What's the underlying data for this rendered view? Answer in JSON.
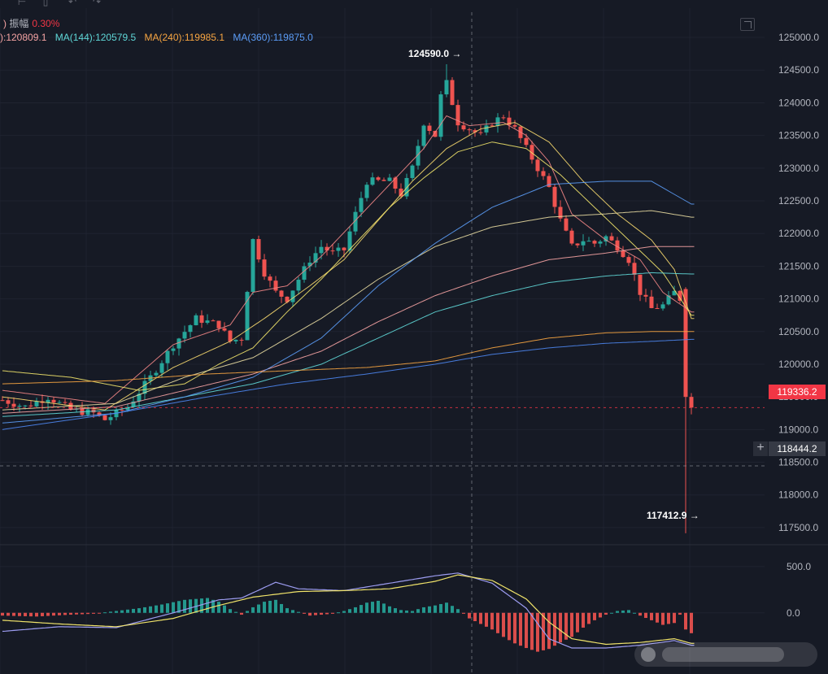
{
  "header": {
    "amplitude_label": "振幅",
    "amplitude_value": "0.30%",
    "paren_fragment": ")"
  },
  "ma_legend": [
    {
      "label": "):120809.1",
      "color": "#f5a3a3"
    },
    {
      "label": "MA(144):120579.5",
      "color": "#5fd7d7"
    },
    {
      "label": "MA(240):119985.1",
      "color": "#f7a541"
    },
    {
      "label": "MA(360):119875.0",
      "color": "#5b9cf6"
    }
  ],
  "icons": [
    "grid-icon",
    "calendar-icon",
    "undo-icon",
    "redo-icon",
    "expand-icon",
    "plus-icon"
  ],
  "chart_data": {
    "type": "candlestick",
    "y_axis": {
      "ticks": [
        "125000.0",
        "124500.0",
        "124000.0",
        "123500.0",
        "123000.0",
        "122500.0",
        "122000.0",
        "121500.0",
        "121000.0",
        "120500.0",
        "120000.0",
        "119500.0",
        "119000.0",
        "118500.0",
        "118000.0",
        "117500.0"
      ],
      "range": [
        117300,
        125150
      ]
    },
    "current_price": "119336.2",
    "cursor_price": "118444.2",
    "high_label": "124590.0",
    "low_label": "117412.9",
    "high_value": 124590.0,
    "low_value": 117412.9,
    "anchors": [
      [
        0,
        119450
      ],
      [
        4,
        119350
      ],
      [
        8,
        119500
      ],
      [
        12,
        119300
      ],
      [
        16,
        119250
      ],
      [
        18,
        119150
      ],
      [
        22,
        119350
      ],
      [
        26,
        119800
      ],
      [
        30,
        120300
      ],
      [
        34,
        120700
      ],
      [
        38,
        120600
      ],
      [
        40,
        120350
      ],
      [
        42,
        120400
      ],
      [
        44,
        121900
      ],
      [
        46,
        121400
      ],
      [
        48,
        121100
      ],
      [
        50,
        121000
      ],
      [
        52,
        121300
      ],
      [
        54,
        121600
      ],
      [
        56,
        121800
      ],
      [
        58,
        121700
      ],
      [
        60,
        121750
      ],
      [
        62,
        122300
      ],
      [
        64,
        122800
      ],
      [
        66,
        122800
      ],
      [
        68,
        122800
      ],
      [
        70,
        122600
      ],
      [
        72,
        123000
      ],
      [
        74,
        123700
      ],
      [
        76,
        123500
      ],
      [
        77,
        124100
      ],
      [
        78,
        124300
      ],
      [
        79,
        124000
      ],
      [
        80,
        123700
      ],
      [
        82,
        123600
      ],
      [
        84,
        123500
      ],
      [
        86,
        123700
      ],
      [
        88,
        123800
      ],
      [
        90,
        123600
      ],
      [
        92,
        123300
      ],
      [
        94,
        123000
      ],
      [
        96,
        122700
      ],
      [
        98,
        122200
      ],
      [
        100,
        121800
      ],
      [
        102,
        121900
      ],
      [
        104,
        121850
      ],
      [
        106,
        121950
      ],
      [
        108,
        121800
      ],
      [
        110,
        121600
      ],
      [
        112,
        121100
      ],
      [
        114,
        120850
      ],
      [
        116,
        120900
      ],
      [
        118,
        121100
      ],
      [
        119,
        121000
      ],
      [
        120,
        119500
      ],
      [
        121,
        119336
      ]
    ],
    "ma_curves": [
      {
        "name": "ma-red",
        "color": "#f08585",
        "points": [
          [
            0,
            119600
          ],
          [
            18,
            119400
          ],
          [
            30,
            120300
          ],
          [
            40,
            120600
          ],
          [
            44,
            121100
          ],
          [
            50,
            121200
          ],
          [
            56,
            121650
          ],
          [
            62,
            122200
          ],
          [
            68,
            122750
          ],
          [
            74,
            123300
          ],
          [
            78,
            123800
          ],
          [
            82,
            123650
          ],
          [
            88,
            123700
          ],
          [
            92,
            123500
          ],
          [
            96,
            123100
          ],
          [
            100,
            122300
          ],
          [
            106,
            121900
          ],
          [
            112,
            121600
          ],
          [
            116,
            121100
          ],
          [
            121,
            120800
          ]
        ]
      },
      {
        "name": "ma-yellow-fast",
        "color": "#f5d76e",
        "points": [
          [
            0,
            119500
          ],
          [
            18,
            119300
          ],
          [
            30,
            119950
          ],
          [
            40,
            120350
          ],
          [
            46,
            120700
          ],
          [
            54,
            121200
          ],
          [
            60,
            121600
          ],
          [
            66,
            122200
          ],
          [
            72,
            122800
          ],
          [
            78,
            123300
          ],
          [
            84,
            123600
          ],
          [
            90,
            123700
          ],
          [
            96,
            123400
          ],
          [
            102,
            122800
          ],
          [
            108,
            122300
          ],
          [
            114,
            121900
          ],
          [
            118,
            121450
          ],
          [
            121,
            120700
          ]
        ]
      },
      {
        "name": "ma-yellow-slow",
        "color": "#f0e36a",
        "points": [
          [
            0,
            119900
          ],
          [
            12,
            119800
          ],
          [
            24,
            119600
          ],
          [
            32,
            119700
          ],
          [
            38,
            120000
          ],
          [
            44,
            120250
          ],
          [
            50,
            120800
          ],
          [
            56,
            121300
          ],
          [
            62,
            121850
          ],
          [
            68,
            122400
          ],
          [
            74,
            122850
          ],
          [
            80,
            123250
          ],
          [
            86,
            123400
          ],
          [
            92,
            123300
          ],
          [
            98,
            122900
          ],
          [
            104,
            122400
          ],
          [
            110,
            121900
          ],
          [
            116,
            121400
          ],
          [
            121,
            120750
          ]
        ]
      },
      {
        "name": "ma-olive",
        "color": "#e6d9a0",
        "points": [
          [
            0,
            119300
          ],
          [
            20,
            119400
          ],
          [
            32,
            119800
          ],
          [
            44,
            120100
          ],
          [
            56,
            120700
          ],
          [
            66,
            121300
          ],
          [
            76,
            121800
          ],
          [
            86,
            122100
          ],
          [
            96,
            122250
          ],
          [
            106,
            122300
          ],
          [
            114,
            122350
          ],
          [
            121,
            122250
          ]
        ]
      },
      {
        "name": "ma-pink",
        "color": "#f5a3a3",
        "points": [
          [
            0,
            119250
          ],
          [
            20,
            119350
          ],
          [
            32,
            119600
          ],
          [
            44,
            119850
          ],
          [
            56,
            120200
          ],
          [
            66,
            120650
          ],
          [
            76,
            121050
          ],
          [
            86,
            121350
          ],
          [
            96,
            121600
          ],
          [
            106,
            121700
          ],
          [
            114,
            121800
          ],
          [
            121,
            121800
          ]
        ]
      },
      {
        "name": "ma-cyan",
        "color": "#5fd7d7",
        "points": [
          [
            0,
            119200
          ],
          [
            20,
            119300
          ],
          [
            32,
            119500
          ],
          [
            44,
            119700
          ],
          [
            56,
            120000
          ],
          [
            66,
            120400
          ],
          [
            76,
            120800
          ],
          [
            86,
            121050
          ],
          [
            96,
            121250
          ],
          [
            106,
            121350
          ],
          [
            114,
            121400
          ],
          [
            121,
            121380
          ]
        ]
      },
      {
        "name": "ma-light-blue",
        "color": "#5b9cf6",
        "points": [
          [
            0,
            119100
          ],
          [
            20,
            119250
          ],
          [
            32,
            119500
          ],
          [
            44,
            119800
          ],
          [
            56,
            120400
          ],
          [
            66,
            121200
          ],
          [
            76,
            121850
          ],
          [
            86,
            122400
          ],
          [
            96,
            122750
          ],
          [
            106,
            122800
          ],
          [
            114,
            122800
          ],
          [
            121,
            122450
          ]
        ]
      },
      {
        "name": "ma-orange",
        "color": "#f7a541",
        "points": [
          [
            0,
            119700
          ],
          [
            20,
            119750
          ],
          [
            36,
            119850
          ],
          [
            50,
            119900
          ],
          [
            64,
            119950
          ],
          [
            76,
            120050
          ],
          [
            86,
            120250
          ],
          [
            96,
            120400
          ],
          [
            106,
            120480
          ],
          [
            114,
            120500
          ],
          [
            121,
            120500
          ]
        ]
      },
      {
        "name": "ma-blue",
        "color": "#4d86f0",
        "points": [
          [
            0,
            119000
          ],
          [
            20,
            119250
          ],
          [
            36,
            119500
          ],
          [
            50,
            119700
          ],
          [
            64,
            119850
          ],
          [
            76,
            120000
          ],
          [
            86,
            120150
          ],
          [
            96,
            120250
          ],
          [
            106,
            120320
          ],
          [
            114,
            120350
          ],
          [
            121,
            120380
          ]
        ]
      }
    ],
    "macd": {
      "ticks": [
        "500.0",
        "0.0"
      ],
      "histogram_points": [
        [
          0,
          -30
        ],
        [
          6,
          -40
        ],
        [
          12,
          -20
        ],
        [
          16,
          -10
        ],
        [
          20,
          20
        ],
        [
          24,
          50
        ],
        [
          28,
          90
        ],
        [
          32,
          140
        ],
        [
          36,
          160
        ],
        [
          38,
          120
        ],
        [
          40,
          40
        ],
        [
          42,
          -20
        ],
        [
          44,
          60
        ],
        [
          46,
          120
        ],
        [
          48,
          140
        ],
        [
          50,
          50
        ],
        [
          52,
          10
        ],
        [
          54,
          -30
        ],
        [
          56,
          -20
        ],
        [
          58,
          -10
        ],
        [
          60,
          20
        ],
        [
          62,
          60
        ],
        [
          64,
          110
        ],
        [
          66,
          130
        ],
        [
          68,
          70
        ],
        [
          70,
          30
        ],
        [
          72,
          20
        ],
        [
          74,
          60
        ],
        [
          76,
          80
        ],
        [
          78,
          110
        ],
        [
          80,
          40
        ],
        [
          82,
          -60
        ],
        [
          84,
          -120
        ],
        [
          86,
          -180
        ],
        [
          88,
          -260
        ],
        [
          90,
          -330
        ],
        [
          92,
          -380
        ],
        [
          94,
          -420
        ],
        [
          96,
          -390
        ],
        [
          98,
          -320
        ],
        [
          100,
          -260
        ],
        [
          102,
          -160
        ],
        [
          104,
          -80
        ],
        [
          106,
          -20
        ],
        [
          108,
          20
        ],
        [
          110,
          30
        ],
        [
          112,
          -30
        ],
        [
          114,
          -80
        ],
        [
          116,
          -130
        ],
        [
          118,
          -110
        ],
        [
          119,
          -20
        ],
        [
          120,
          -180
        ],
        [
          121,
          -220
        ]
      ],
      "dif_points": [
        [
          0,
          -200
        ],
        [
          10,
          -150
        ],
        [
          20,
          -160
        ],
        [
          30,
          0
        ],
        [
          38,
          140
        ],
        [
          42,
          160
        ],
        [
          48,
          330
        ],
        [
          52,
          260
        ],
        [
          60,
          240
        ],
        [
          68,
          320
        ],
        [
          76,
          400
        ],
        [
          80,
          430
        ],
        [
          86,
          320
        ],
        [
          92,
          50
        ],
        [
          96,
          -280
        ],
        [
          100,
          -380
        ],
        [
          106,
          -380
        ],
        [
          112,
          -350
        ],
        [
          118,
          -300
        ],
        [
          121,
          -350
        ]
      ],
      "dea_points": [
        [
          0,
          -80
        ],
        [
          10,
          -120
        ],
        [
          20,
          -150
        ],
        [
          30,
          -60
        ],
        [
          38,
          80
        ],
        [
          44,
          170
        ],
        [
          52,
          230
        ],
        [
          60,
          240
        ],
        [
          68,
          260
        ],
        [
          76,
          340
        ],
        [
          80,
          410
        ],
        [
          86,
          350
        ],
        [
          92,
          150
        ],
        [
          96,
          -100
        ],
        [
          100,
          -280
        ],
        [
          106,
          -340
        ],
        [
          112,
          -320
        ],
        [
          118,
          -280
        ],
        [
          121,
          -330
        ]
      ],
      "dif_color": "#9c9cf0",
      "dea_color": "#f0e36a",
      "range": [
        -450,
        560
      ]
    },
    "colors": {
      "up": "#26a69a",
      "down": "#ef5350"
    }
  }
}
